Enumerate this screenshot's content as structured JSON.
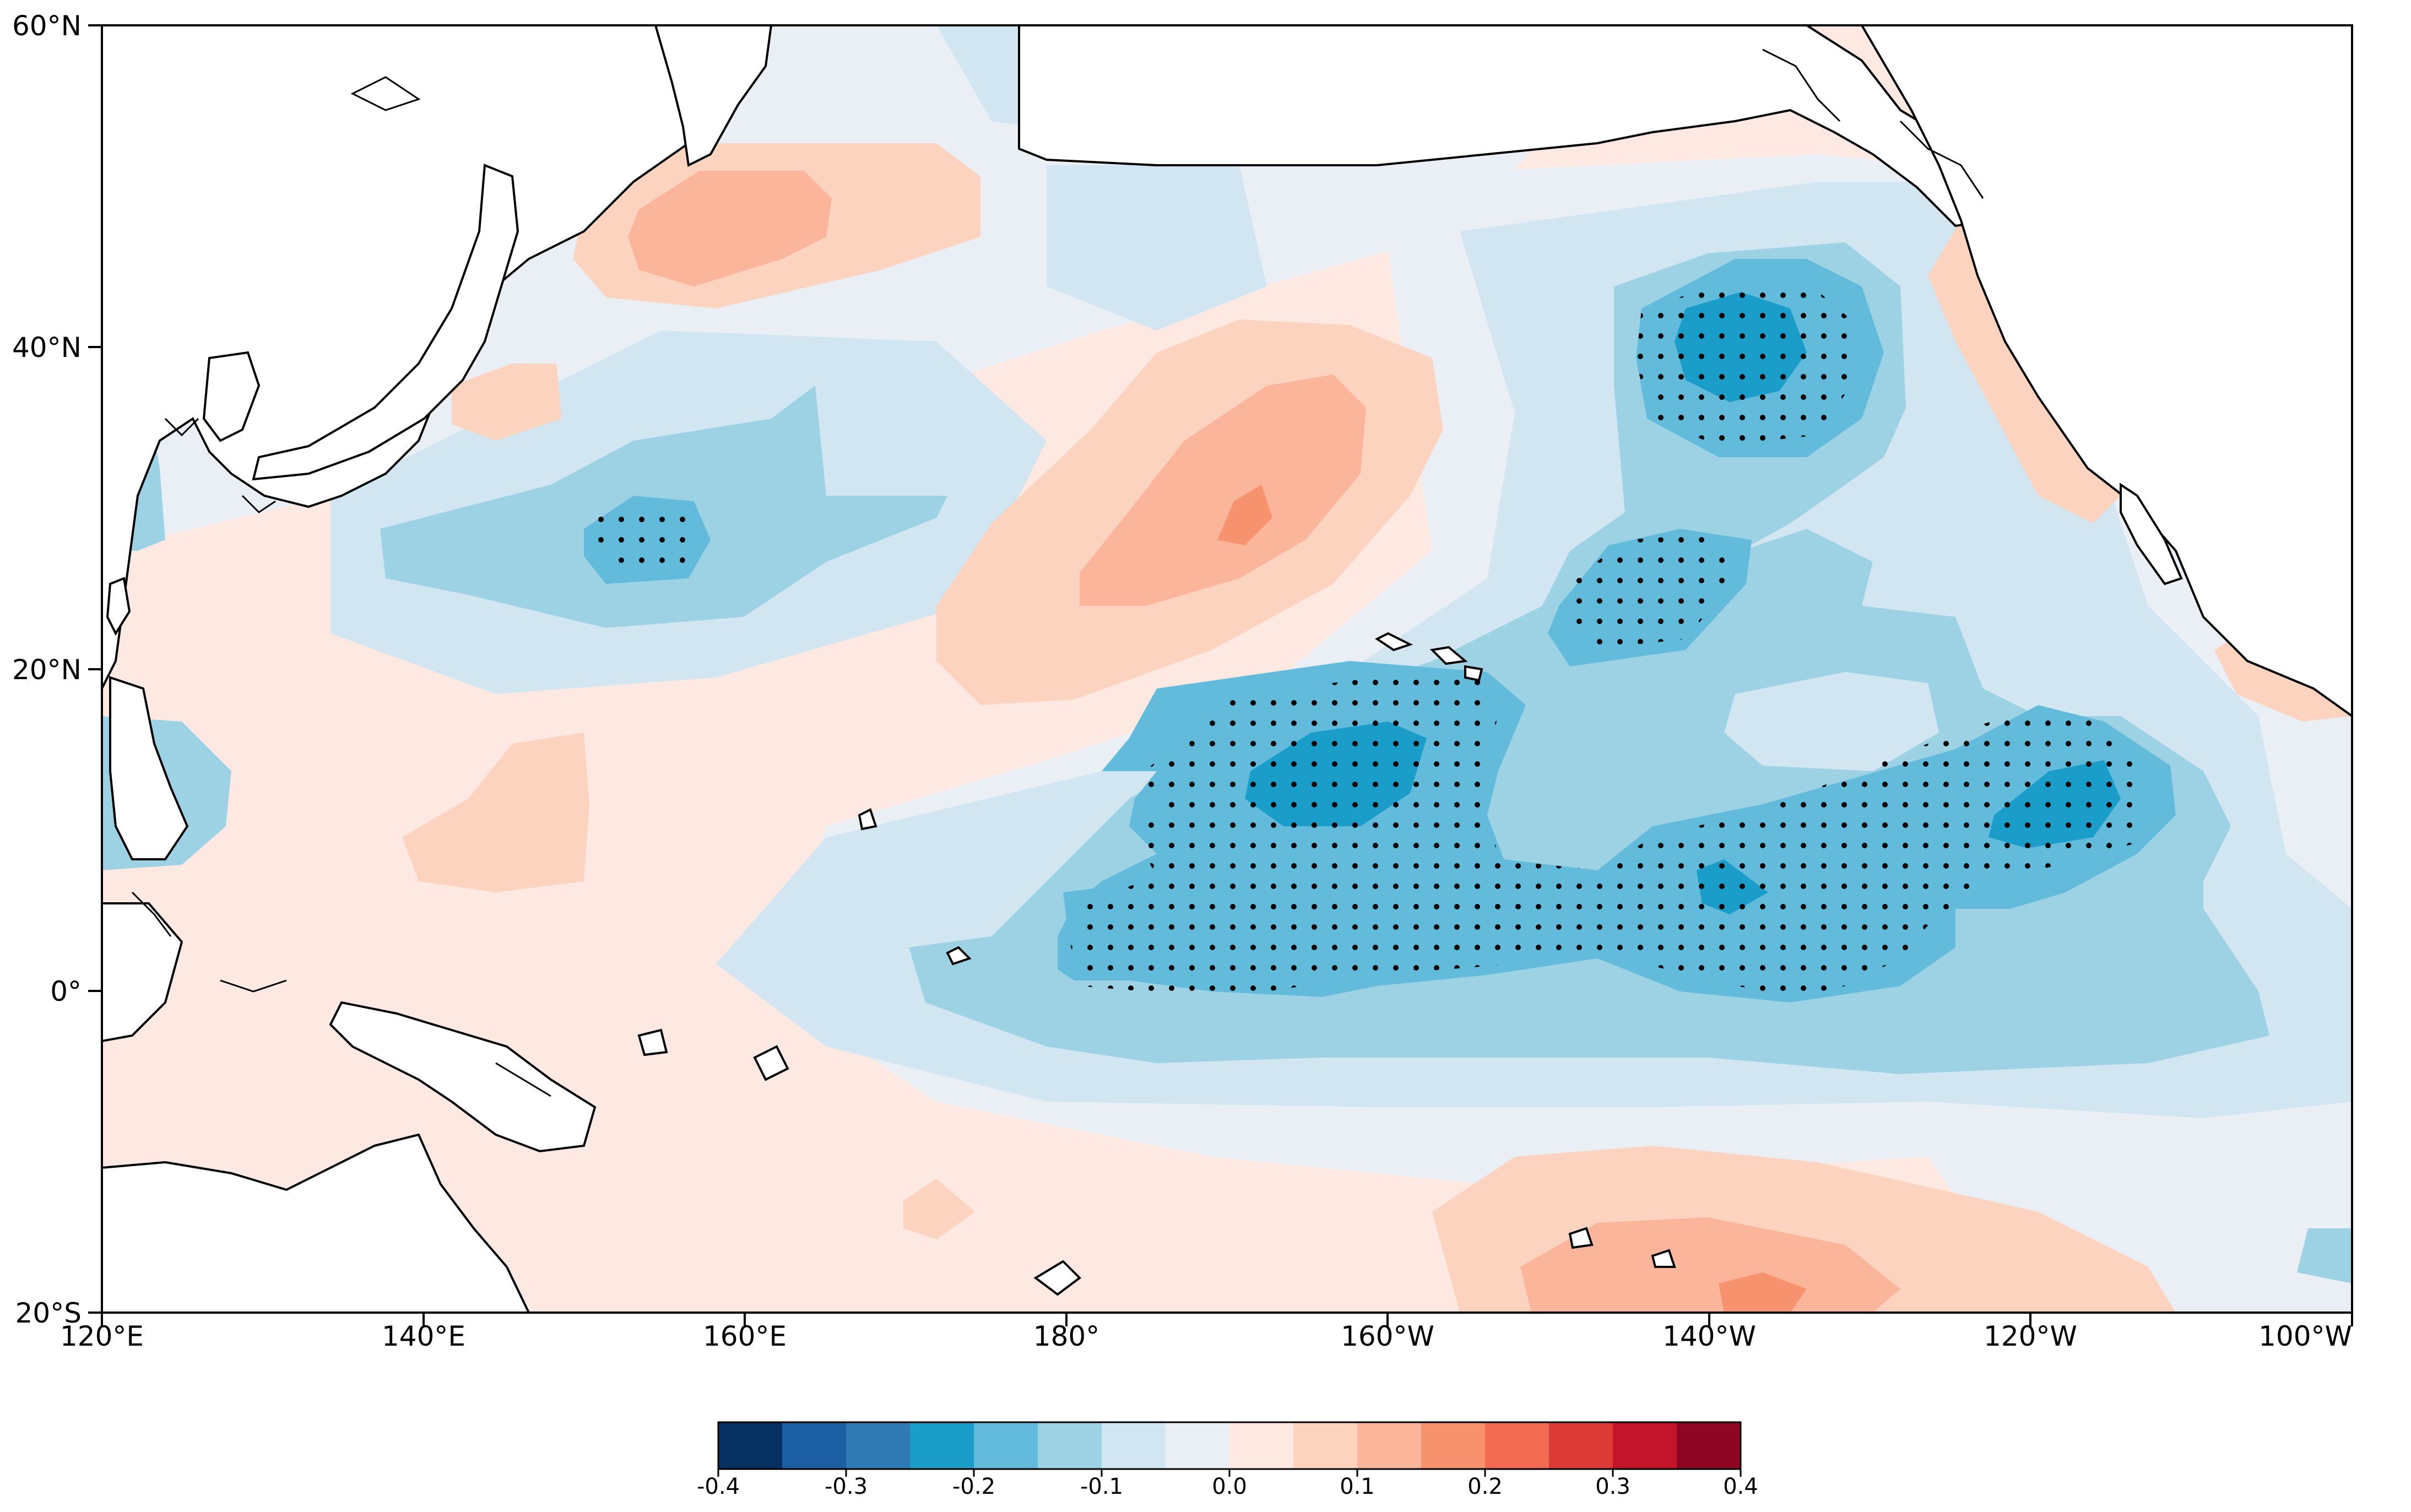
{
  "map": {
    "lat_labels": [
      "60°N",
      "40°N",
      "20°N",
      "0°",
      "20°S"
    ],
    "lon_labels": [
      "120°E",
      "140°E",
      "160°E",
      "180°",
      "160°W",
      "140°W",
      "120°W",
      "100°W"
    ],
    "extent": {
      "lon_min": 120,
      "lon_max": 260,
      "lat_min": -20,
      "lat_max": 60
    },
    "stipple_color": "#000000",
    "coast_color": "#000000",
    "land_color": "#ffffff"
  },
  "colorbar": {
    "ticks": [
      "-0.4",
      "-0.3",
      "-0.2",
      "-0.1",
      "0.0",
      "0.1",
      "0.2",
      "0.3",
      "0.4"
    ],
    "colors": [
      "#053061",
      "#1d5fa3",
      "#2f79b5",
      "#1a9dc8",
      "#63bbdc",
      "#9dd2e5",
      "#d1e6f1",
      "#eaeff5",
      "#fde9e1",
      "#fcd3bf",
      "#fbb59a",
      "#f7926f",
      "#f26a50",
      "#dd3a35",
      "#c3142b",
      "#8f0625"
    ]
  }
}
